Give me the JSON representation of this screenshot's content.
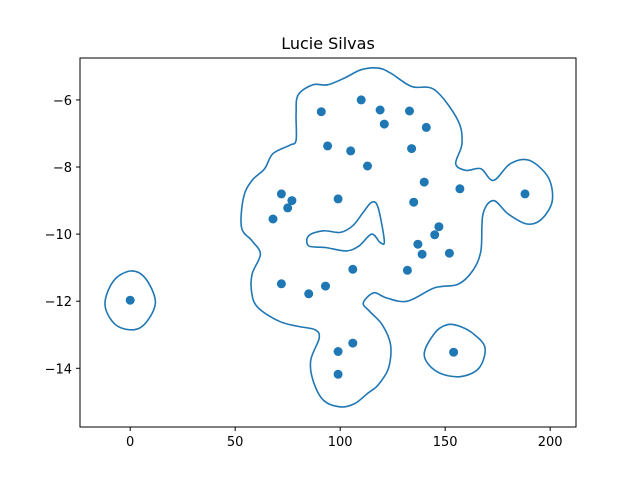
{
  "chart_data": {
    "type": "scatter",
    "title": "Lucie Silvas",
    "xlabel": "",
    "ylabel": "",
    "xlim": [
      -23.9,
      212.3
    ],
    "ylim": [
      -15.75,
      -4.75
    ],
    "xticks": [
      0,
      50,
      100,
      150,
      200
    ],
    "xtick_labels": [
      "0",
      "50",
      "100",
      "150",
      "200"
    ],
    "yticks": [
      -14,
      -12,
      -10,
      -8,
      -6
    ],
    "ytick_labels": [
      "−14",
      "−12",
      "−10",
      "−8",
      "−6"
    ],
    "grid": false,
    "colors": {
      "series": "#1f77b4",
      "axes": "#000000",
      "background": "#ffffff"
    },
    "points": [
      {
        "x": 0,
        "y": -11.97
      },
      {
        "x": 91,
        "y": -6.35
      },
      {
        "x": 110,
        "y": -6.0
      },
      {
        "x": 119,
        "y": -6.3
      },
      {
        "x": 133,
        "y": -6.33
      },
      {
        "x": 121,
        "y": -6.72
      },
      {
        "x": 141,
        "y": -6.82
      },
      {
        "x": 94,
        "y": -7.37
      },
      {
        "x": 105,
        "y": -7.52
      },
      {
        "x": 134,
        "y": -7.45
      },
      {
        "x": 113,
        "y": -7.97
      },
      {
        "x": 140,
        "y": -8.45
      },
      {
        "x": 157,
        "y": -8.65
      },
      {
        "x": 188,
        "y": -8.8
      },
      {
        "x": 72,
        "y": -8.8
      },
      {
        "x": 77,
        "y": -9.0
      },
      {
        "x": 75,
        "y": -9.22
      },
      {
        "x": 99,
        "y": -8.95
      },
      {
        "x": 135,
        "y": -9.05
      },
      {
        "x": 68,
        "y": -9.55
      },
      {
        "x": 147,
        "y": -9.78
      },
      {
        "x": 145,
        "y": -10.02
      },
      {
        "x": 137,
        "y": -10.3
      },
      {
        "x": 139,
        "y": -10.6
      },
      {
        "x": 152,
        "y": -10.57
      },
      {
        "x": 106,
        "y": -11.05
      },
      {
        "x": 132,
        "y": -11.08
      },
      {
        "x": 72,
        "y": -11.48
      },
      {
        "x": 93,
        "y": -11.55
      },
      {
        "x": 85,
        "y": -11.78
      },
      {
        "x": 106,
        "y": -13.25
      },
      {
        "x": 99,
        "y": -13.5
      },
      {
        "x": 154,
        "y": -13.52
      },
      {
        "x": 99,
        "y": -14.18
      }
    ],
    "contours": [
      [
        [
          0,
          -11.1
        ],
        [
          7,
          -11.3
        ],
        [
          12,
          -12.0
        ],
        [
          8,
          -12.6
        ],
        [
          2,
          -12.85
        ],
        [
          -7,
          -12.7
        ],
        [
          -12,
          -12.1
        ],
        [
          -8,
          -11.4
        ]
      ],
      [
        [
          110,
          -5.1
        ],
        [
          118,
          -5.05
        ],
        [
          124,
          -5.2
        ],
        [
          134,
          -5.6
        ],
        [
          145,
          -5.7
        ],
        [
          156,
          -6.6
        ],
        [
          158,
          -7.3
        ],
        [
          155,
          -7.9
        ],
        [
          160,
          -8.1
        ],
        [
          167,
          -8.05
        ],
        [
          173,
          -8.4
        ],
        [
          181,
          -7.9
        ],
        [
          190,
          -7.8
        ],
        [
          199,
          -8.3
        ],
        [
          201,
          -9.0
        ],
        [
          196,
          -9.55
        ],
        [
          189,
          -9.7
        ],
        [
          180,
          -9.4
        ],
        [
          173,
          -9.0
        ],
        [
          168,
          -9.4
        ],
        [
          167,
          -10.5
        ],
        [
          163,
          -11.1
        ],
        [
          156,
          -11.5
        ],
        [
          145,
          -11.6
        ],
        [
          132,
          -12.0
        ],
        [
          122,
          -11.9
        ],
        [
          116,
          -11.75
        ],
        [
          111,
          -12.05
        ],
        [
          114,
          -12.3
        ],
        [
          120,
          -12.7
        ],
        [
          124,
          -13.3
        ],
        [
          123,
          -14.0
        ],
        [
          118,
          -14.5
        ],
        [
          113,
          -14.75
        ],
        [
          107,
          -15.05
        ],
        [
          100,
          -15.15
        ],
        [
          92,
          -14.95
        ],
        [
          87,
          -14.35
        ],
        [
          86,
          -13.75
        ],
        [
          90,
          -13.1
        ],
        [
          88,
          -12.85
        ],
        [
          80,
          -12.75
        ],
        [
          71,
          -12.6
        ],
        [
          61,
          -12.2
        ],
        [
          58,
          -11.8
        ],
        [
          58,
          -11.2
        ],
        [
          62,
          -10.6
        ],
        [
          58,
          -10.2
        ],
        [
          53,
          -9.8
        ],
        [
          54,
          -8.9
        ],
        [
          58,
          -8.4
        ],
        [
          64,
          -8.05
        ],
        [
          68,
          -7.6
        ],
        [
          76,
          -7.35
        ],
        [
          79,
          -7.2
        ],
        [
          79,
          -6.4
        ],
        [
          80,
          -5.85
        ],
        [
          87,
          -5.55
        ],
        [
          94,
          -5.55
        ],
        [
          102,
          -5.35
        ]
      ],
      [
        [
          111,
          -9.35
        ],
        [
          115,
          -9.05
        ],
        [
          118,
          -9.2
        ],
        [
          121,
          -10.2
        ],
        [
          119,
          -10.25
        ],
        [
          115,
          -10.0
        ],
        [
          109,
          -10.35
        ],
        [
          103,
          -10.5
        ],
        [
          93,
          -10.4
        ],
        [
          85,
          -10.35
        ],
        [
          85,
          -10.05
        ],
        [
          92,
          -9.9
        ],
        [
          100,
          -9.95
        ],
        [
          106,
          -9.75
        ]
      ],
      [
        [
          157,
          -12.75
        ],
        [
          164,
          -13.0
        ],
        [
          169,
          -13.4
        ],
        [
          166,
          -14.0
        ],
        [
          157,
          -14.25
        ],
        [
          146,
          -14.1
        ],
        [
          140,
          -13.6
        ],
        [
          145,
          -12.95
        ],
        [
          151,
          -12.7
        ]
      ]
    ]
  }
}
